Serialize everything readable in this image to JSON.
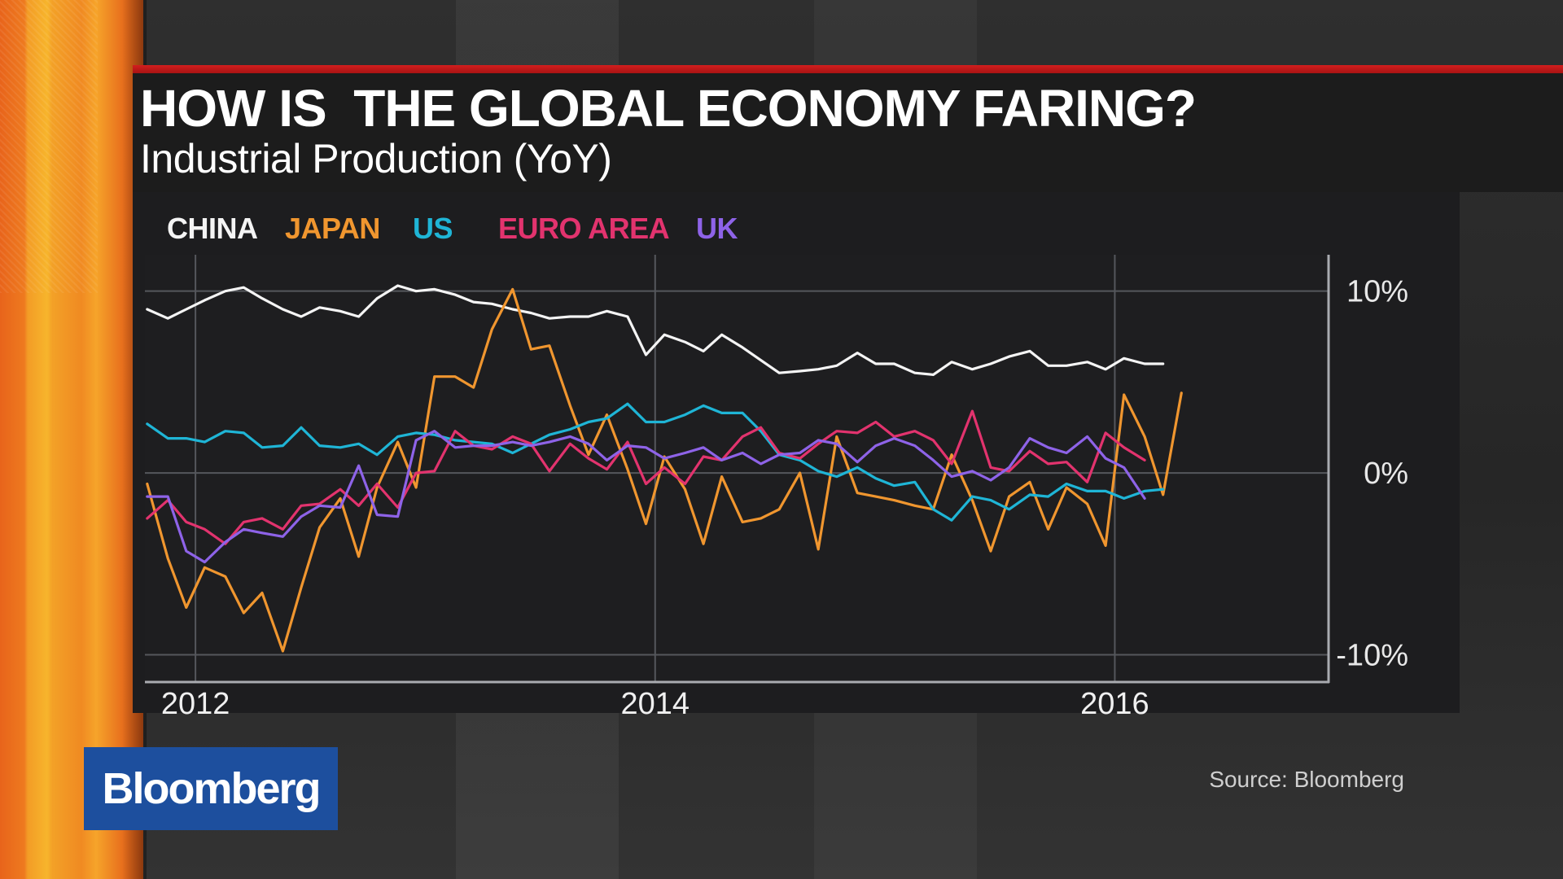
{
  "headline": "HOW IS  THE GLOBAL ECONOMY FARING?",
  "subheadline": "Industrial Production (YoY)",
  "logo_text": "Bloomberg",
  "source": "Source: Bloomberg",
  "colors": {
    "china": "#f4f4f4",
    "japan": "#f0962f",
    "us": "#1fb5d6",
    "euro_area": "#e2336e",
    "uk": "#8e63e8",
    "accent_rule": "#d21e1e",
    "logo_bg": "#1d4f9e"
  },
  "chart_data": {
    "type": "line",
    "title": "HOW IS  THE GLOBAL ECONOMY FARING?",
    "subtitle": "Industrial Production (YoY)",
    "xlabel": "",
    "ylabel": "",
    "x_ticks": [
      "2012",
      "2014",
      "2016"
    ],
    "x_tick_values": [
      2012,
      2014,
      2016
    ],
    "y_ticks": [
      "10%",
      "0%",
      "-10%"
    ],
    "y_tick_values": [
      10,
      0,
      -10
    ],
    "xlim": [
      2011.78,
      2016.93
    ],
    "ylim": [
      -11.5,
      12
    ],
    "grid": true,
    "legend_position": "top-left",
    "series": [
      {
        "name": "CHINA",
        "color": "#f4f4f4",
        "points": [
          [
            2011.79,
            9.0
          ],
          [
            2011.88,
            8.5
          ],
          [
            2011.96,
            9.0
          ],
          [
            2012.04,
            9.5
          ],
          [
            2012.13,
            10.0
          ],
          [
            2012.21,
            10.2
          ],
          [
            2012.29,
            9.6
          ],
          [
            2012.38,
            9.0
          ],
          [
            2012.46,
            8.6
          ],
          [
            2012.54,
            9.1
          ],
          [
            2012.63,
            8.9
          ],
          [
            2012.71,
            8.6
          ],
          [
            2012.79,
            9.6
          ],
          [
            2012.88,
            10.3
          ],
          [
            2012.96,
            10.0
          ],
          [
            2013.04,
            10.1
          ],
          [
            2013.13,
            9.8
          ],
          [
            2013.21,
            9.4
          ],
          [
            2013.29,
            9.3
          ],
          [
            2013.38,
            9.0
          ],
          [
            2013.46,
            8.8
          ],
          [
            2013.54,
            8.5
          ],
          [
            2013.63,
            8.6
          ],
          [
            2013.71,
            8.6
          ],
          [
            2013.79,
            8.9
          ],
          [
            2013.88,
            8.6
          ],
          [
            2013.96,
            6.5
          ],
          [
            2014.04,
            7.6
          ],
          [
            2014.13,
            7.2
          ],
          [
            2014.21,
            6.7
          ],
          [
            2014.29,
            7.6
          ],
          [
            2014.38,
            6.9
          ],
          [
            2014.46,
            6.2
          ],
          [
            2014.54,
            5.5
          ],
          [
            2014.63,
            5.6
          ],
          [
            2014.71,
            5.7
          ],
          [
            2014.79,
            5.9
          ],
          [
            2014.88,
            6.6
          ],
          [
            2014.96,
            6.0
          ],
          [
            2015.04,
            6.0
          ],
          [
            2015.13,
            5.5
          ],
          [
            2015.21,
            5.4
          ],
          [
            2015.29,
            6.1
          ],
          [
            2015.38,
            5.7
          ],
          [
            2015.46,
            6.0
          ],
          [
            2015.54,
            6.4
          ],
          [
            2015.63,
            6.7
          ],
          [
            2015.71,
            5.9
          ],
          [
            2015.79,
            5.9
          ],
          [
            2015.88,
            6.1
          ],
          [
            2015.96,
            5.7
          ],
          [
            2016.04,
            6.3
          ],
          [
            2016.13,
            6.0
          ],
          [
            2016.21,
            6.0
          ]
        ]
      },
      {
        "name": "JAPAN",
        "color": "#f0962f",
        "points": [
          [
            2011.79,
            -0.6
          ],
          [
            2011.88,
            -4.7
          ],
          [
            2011.96,
            -7.4
          ],
          [
            2012.04,
            -5.2
          ],
          [
            2012.13,
            -5.7
          ],
          [
            2012.21,
            -7.7
          ],
          [
            2012.29,
            -6.6
          ],
          [
            2012.38,
            -9.8
          ],
          [
            2012.46,
            -6.3
          ],
          [
            2012.54,
            -3.0
          ],
          [
            2012.63,
            -1.4
          ],
          [
            2012.71,
            -4.6
          ],
          [
            2012.79,
            -0.8
          ],
          [
            2012.88,
            1.7
          ],
          [
            2012.96,
            -0.8
          ],
          [
            2013.04,
            5.3
          ],
          [
            2013.13,
            5.3
          ],
          [
            2013.21,
            4.7
          ],
          [
            2013.29,
            7.9
          ],
          [
            2013.38,
            10.1
          ],
          [
            2013.46,
            6.8
          ],
          [
            2013.54,
            7.0
          ],
          [
            2013.63,
            3.7
          ],
          [
            2013.71,
            1.0
          ],
          [
            2013.79,
            3.2
          ],
          [
            2013.88,
            0.2
          ],
          [
            2013.96,
            -2.8
          ],
          [
            2014.04,
            0.9
          ],
          [
            2014.13,
            -0.9
          ],
          [
            2014.21,
            -3.9
          ],
          [
            2014.29,
            -0.2
          ],
          [
            2014.38,
            -2.7
          ],
          [
            2014.46,
            -2.5
          ],
          [
            2014.54,
            -2.0
          ],
          [
            2014.63,
            0.0
          ],
          [
            2014.71,
            -4.2
          ],
          [
            2014.79,
            2.0
          ],
          [
            2014.88,
            -1.1
          ],
          [
            2014.96,
            -1.3
          ],
          [
            2015.04,
            -1.5
          ],
          [
            2015.13,
            -1.8
          ],
          [
            2015.21,
            -2.0
          ],
          [
            2015.29,
            1.0
          ],
          [
            2015.38,
            -1.5
          ],
          [
            2015.46,
            -4.3
          ],
          [
            2015.54,
            -1.3
          ],
          [
            2015.63,
            -0.5
          ],
          [
            2015.71,
            -3.1
          ],
          [
            2015.79,
            -0.8
          ],
          [
            2015.88,
            -1.7
          ],
          [
            2015.96,
            -4.0
          ],
          [
            2016.04,
            4.3
          ],
          [
            2016.13,
            2.0
          ],
          [
            2016.21,
            -1.2
          ],
          [
            2016.29,
            4.4
          ]
        ]
      },
      {
        "name": "US",
        "color": "#1fb5d6",
        "points": [
          [
            2011.79,
            2.7
          ],
          [
            2011.88,
            1.9
          ],
          [
            2011.96,
            1.9
          ],
          [
            2012.04,
            1.7
          ],
          [
            2012.13,
            2.3
          ],
          [
            2012.21,
            2.2
          ],
          [
            2012.29,
            1.4
          ],
          [
            2012.38,
            1.5
          ],
          [
            2012.46,
            2.5
          ],
          [
            2012.54,
            1.5
          ],
          [
            2012.63,
            1.4
          ],
          [
            2012.71,
            1.6
          ],
          [
            2012.79,
            1.0
          ],
          [
            2012.88,
            2.0
          ],
          [
            2012.96,
            2.2
          ],
          [
            2013.04,
            2.1
          ],
          [
            2013.13,
            1.8
          ],
          [
            2013.21,
            1.7
          ],
          [
            2013.29,
            1.6
          ],
          [
            2013.38,
            1.1
          ],
          [
            2013.46,
            1.6
          ],
          [
            2013.54,
            2.1
          ],
          [
            2013.63,
            2.4
          ],
          [
            2013.71,
            2.8
          ],
          [
            2013.79,
            3.0
          ],
          [
            2013.88,
            3.8
          ],
          [
            2013.96,
            2.8
          ],
          [
            2014.04,
            2.8
          ],
          [
            2014.13,
            3.2
          ],
          [
            2014.21,
            3.7
          ],
          [
            2014.29,
            3.3
          ],
          [
            2014.38,
            3.3
          ],
          [
            2014.46,
            2.3
          ],
          [
            2014.54,
            1.0
          ],
          [
            2014.63,
            0.7
          ],
          [
            2014.71,
            0.1
          ],
          [
            2014.79,
            -0.2
          ],
          [
            2014.88,
            0.3
          ],
          [
            2014.96,
            -0.3
          ],
          [
            2015.04,
            -0.7
          ],
          [
            2015.13,
            -0.5
          ],
          [
            2015.21,
            -2.0
          ],
          [
            2015.29,
            -2.6
          ],
          [
            2015.38,
            -1.3
          ],
          [
            2015.46,
            -1.5
          ],
          [
            2015.54,
            -2.0
          ],
          [
            2015.63,
            -1.2
          ],
          [
            2015.71,
            -1.3
          ],
          [
            2015.79,
            -0.6
          ],
          [
            2015.88,
            -1.0
          ],
          [
            2015.96,
            -1.0
          ],
          [
            2016.04,
            -1.4
          ],
          [
            2016.13,
            -1.0
          ],
          [
            2016.21,
            -0.9
          ]
        ]
      },
      {
        "name": "EURO AREA",
        "color": "#e2336e",
        "points": [
          [
            2011.79,
            -2.5
          ],
          [
            2011.88,
            -1.5
          ],
          [
            2011.96,
            -2.7
          ],
          [
            2012.04,
            -3.1
          ],
          [
            2012.13,
            -3.9
          ],
          [
            2012.21,
            -2.7
          ],
          [
            2012.29,
            -2.5
          ],
          [
            2012.38,
            -3.1
          ],
          [
            2012.46,
            -1.8
          ],
          [
            2012.54,
            -1.7
          ],
          [
            2012.63,
            -0.9
          ],
          [
            2012.71,
            -1.8
          ],
          [
            2012.79,
            -0.6
          ],
          [
            2012.88,
            -1.9
          ],
          [
            2012.96,
            0.0
          ],
          [
            2013.04,
            0.1
          ],
          [
            2013.13,
            2.3
          ],
          [
            2013.21,
            1.5
          ],
          [
            2013.29,
            1.3
          ],
          [
            2013.38,
            2.0
          ],
          [
            2013.46,
            1.6
          ],
          [
            2013.54,
            0.1
          ],
          [
            2013.63,
            1.6
          ],
          [
            2013.71,
            0.8
          ],
          [
            2013.79,
            0.2
          ],
          [
            2013.88,
            1.7
          ],
          [
            2013.96,
            -0.6
          ],
          [
            2014.04,
            0.3
          ],
          [
            2014.13,
            -0.6
          ],
          [
            2014.21,
            0.9
          ],
          [
            2014.29,
            0.7
          ],
          [
            2014.38,
            2.0
          ],
          [
            2014.46,
            2.5
          ],
          [
            2014.54,
            1.1
          ],
          [
            2014.63,
            0.8
          ],
          [
            2014.71,
            1.6
          ],
          [
            2014.79,
            2.3
          ],
          [
            2014.88,
            2.2
          ],
          [
            2014.96,
            2.8
          ],
          [
            2015.04,
            2.0
          ],
          [
            2015.13,
            2.3
          ],
          [
            2015.21,
            1.8
          ],
          [
            2015.29,
            0.5
          ],
          [
            2015.38,
            3.4
          ],
          [
            2015.46,
            0.3
          ],
          [
            2015.54,
            0.1
          ],
          [
            2015.63,
            1.2
          ],
          [
            2015.71,
            0.5
          ],
          [
            2015.79,
            0.6
          ],
          [
            2015.88,
            -0.5
          ],
          [
            2015.96,
            2.2
          ],
          [
            2016.04,
            1.4
          ],
          [
            2016.13,
            0.7
          ]
        ]
      },
      {
        "name": "UK",
        "color": "#8e63e8",
        "points": [
          [
            2011.79,
            -1.3
          ],
          [
            2011.88,
            -1.3
          ],
          [
            2011.96,
            -4.3
          ],
          [
            2012.04,
            -4.9
          ],
          [
            2012.13,
            -3.8
          ],
          [
            2012.21,
            -3.1
          ],
          [
            2012.29,
            -3.3
          ],
          [
            2012.38,
            -3.5
          ],
          [
            2012.46,
            -2.4
          ],
          [
            2012.54,
            -1.8
          ],
          [
            2012.63,
            -1.9
          ],
          [
            2012.71,
            0.4
          ],
          [
            2012.79,
            -2.3
          ],
          [
            2012.88,
            -2.4
          ],
          [
            2012.96,
            1.8
          ],
          [
            2013.04,
            2.3
          ],
          [
            2013.13,
            1.4
          ],
          [
            2013.21,
            1.5
          ],
          [
            2013.29,
            1.5
          ],
          [
            2013.38,
            1.7
          ],
          [
            2013.46,
            1.5
          ],
          [
            2013.54,
            1.7
          ],
          [
            2013.63,
            2.0
          ],
          [
            2013.71,
            1.6
          ],
          [
            2013.79,
            0.7
          ],
          [
            2013.88,
            1.5
          ],
          [
            2013.96,
            1.4
          ],
          [
            2014.04,
            0.8
          ],
          [
            2014.13,
            1.1
          ],
          [
            2014.21,
            1.4
          ],
          [
            2014.29,
            0.7
          ],
          [
            2014.38,
            1.1
          ],
          [
            2014.46,
            0.5
          ],
          [
            2014.54,
            1.0
          ],
          [
            2014.63,
            1.1
          ],
          [
            2014.71,
            1.8
          ],
          [
            2014.79,
            1.6
          ],
          [
            2014.88,
            0.6
          ],
          [
            2014.96,
            1.5
          ],
          [
            2015.04,
            1.9
          ],
          [
            2015.13,
            1.5
          ],
          [
            2015.21,
            0.7
          ],
          [
            2015.29,
            -0.2
          ],
          [
            2015.38,
            0.1
          ],
          [
            2015.46,
            -0.4
          ],
          [
            2015.54,
            0.3
          ],
          [
            2015.63,
            1.9
          ],
          [
            2015.71,
            1.4
          ],
          [
            2015.79,
            1.1
          ],
          [
            2015.88,
            2.0
          ],
          [
            2015.96,
            0.8
          ],
          [
            2016.04,
            0.3
          ],
          [
            2016.13,
            -1.4
          ]
        ]
      }
    ]
  }
}
